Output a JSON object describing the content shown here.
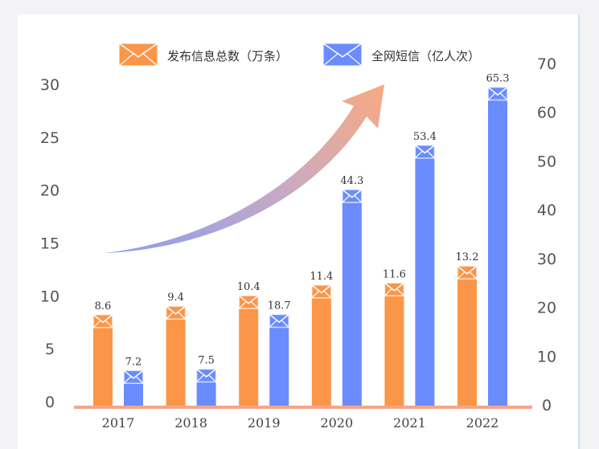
{
  "chart_data": {
    "type": "bar",
    "categories": [
      "2017",
      "2018",
      "2019",
      "2020",
      "2021",
      "2022"
    ],
    "series": [
      {
        "name": "发布信息总数（万条）",
        "values": [
          8.6,
          9.4,
          10.4,
          11.4,
          11.6,
          13.2
        ],
        "axis": "left",
        "color": "#fb9649"
      },
      {
        "name": "全网短信（亿人次）",
        "values": [
          7.2,
          7.5,
          18.7,
          44.3,
          53.4,
          65.3
        ],
        "axis": "right",
        "color": "#6a8cff"
      }
    ],
    "y_left": {
      "ylim": [
        0,
        30
      ],
      "ticks": [
        "0",
        "5",
        "10",
        "15",
        "20",
        "25",
        "30"
      ]
    },
    "y_right": {
      "ylim": [
        0,
        70
      ],
      "ticks": [
        "0",
        "10",
        "20",
        "30",
        "40",
        "50",
        "60",
        "70"
      ]
    },
    "legend": "top",
    "icon": "envelope-icon",
    "annotation": "upward-trend-arrow",
    "baseline_color": "#f7a48a"
  }
}
